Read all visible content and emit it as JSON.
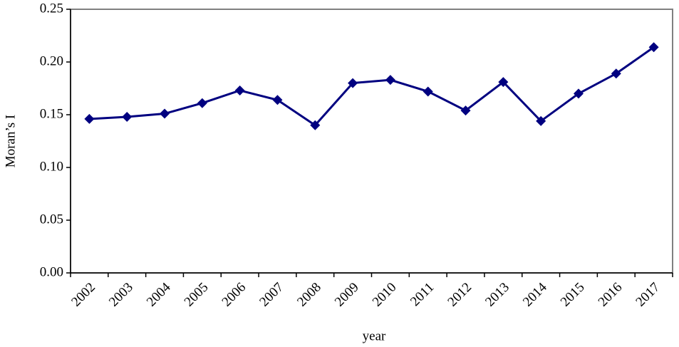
{
  "chart_data": {
    "type": "line",
    "x_label": "year",
    "y_label": "Moran’s I",
    "categories": [
      "2002",
      "2003",
      "2004",
      "2005",
      "2006",
      "2007",
      "2008",
      "2009",
      "2010",
      "2011",
      "2012",
      "2013",
      "2014",
      "2015",
      "2016",
      "2017"
    ],
    "values": [
      0.146,
      0.148,
      0.151,
      0.161,
      0.173,
      0.164,
      0.14,
      0.18,
      0.183,
      0.172,
      0.154,
      0.181,
      0.144,
      0.17,
      0.189,
      0.214
    ],
    "color": "#000080",
    "ylim": [
      0,
      0.25
    ],
    "yticks": [
      {
        "value": 0,
        "label": "0.00"
      },
      0.05,
      {
        "value": 0.1,
        "label": "0.10"
      },
      0.15,
      {
        "value": 0.2,
        "label": "0.20"
      },
      0.25
    ]
  }
}
